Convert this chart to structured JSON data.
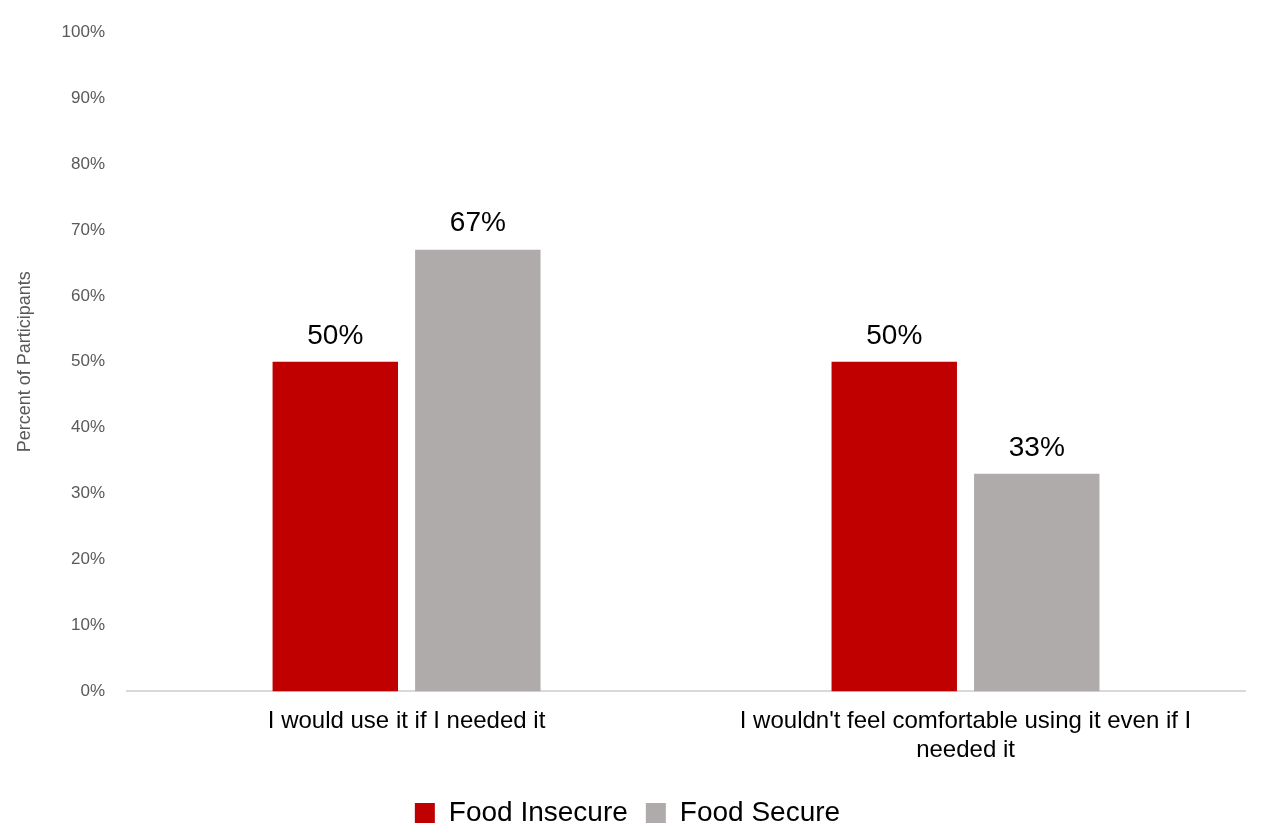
{
  "chart_data": {
    "type": "bar",
    "ylabel": "Percent of Participants",
    "categories": [
      "I would use it if I needed it",
      "I wouldn't feel comfortable using it even if I needed it"
    ],
    "series": [
      {
        "name": "Food Insecure",
        "color": "#c00000",
        "values": [
          50,
          50
        ],
        "value_labels": [
          "50%",
          "50%"
        ]
      },
      {
        "name": "Food Secure",
        "color": "#afabab",
        "values": [
          67,
          33
        ],
        "value_labels": [
          "67%",
          "33%"
        ]
      }
    ],
    "ylim": [
      0,
      100
    ],
    "yticks": [
      {
        "value": 0,
        "label": "0%"
      },
      {
        "value": 10,
        "label": "10%"
      },
      {
        "value": 20,
        "label": "20%"
      },
      {
        "value": 30,
        "label": "30%"
      },
      {
        "value": 40,
        "label": "40%"
      },
      {
        "value": 50,
        "label": "50%"
      },
      {
        "value": 60,
        "label": "60%"
      },
      {
        "value": 70,
        "label": "70%"
      },
      {
        "value": 80,
        "label": "80%"
      },
      {
        "value": 90,
        "label": "90%"
      },
      {
        "value": 100,
        "label": "100%"
      }
    ],
    "grid": false,
    "legend": "bottom"
  }
}
